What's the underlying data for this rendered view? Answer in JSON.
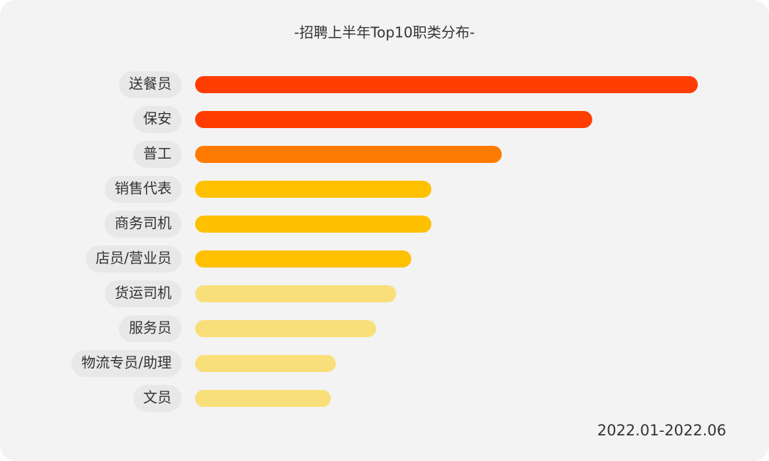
{
  "chart_data": {
    "type": "bar",
    "orientation": "horizontal",
    "title": "-招聘上半年Top10职类分布-",
    "note": "2022.01-2022.06",
    "categories": [
      "送餐员",
      "保安",
      "普工",
      "销售代表",
      "商务司机",
      "店员/营业员",
      "货运司机",
      "服务员",
      "物流专员/助理",
      "文员"
    ],
    "values": [
      100,
      79,
      61,
      47,
      47,
      43,
      40,
      36,
      28,
      27
    ],
    "colors": [
      "#ff3d00",
      "#ff3d00",
      "#ff7a00",
      "#ffc000",
      "#ffc000",
      "#ffc000",
      "#f8df7a",
      "#f8df7a",
      "#f8df7a",
      "#f8df7a"
    ]
  }
}
